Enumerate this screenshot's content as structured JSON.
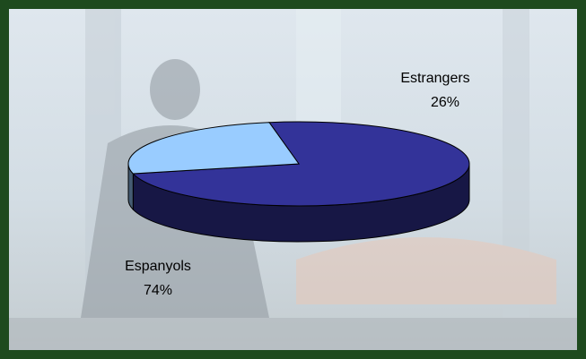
{
  "chart_data": {
    "type": "pie",
    "categories": [
      "Espanyols",
      "Estrangers"
    ],
    "values": [
      74,
      26
    ],
    "value_labels": [
      "74%",
      "26%"
    ],
    "colors": [
      "#333399",
      "#99ccff"
    ]
  }
}
